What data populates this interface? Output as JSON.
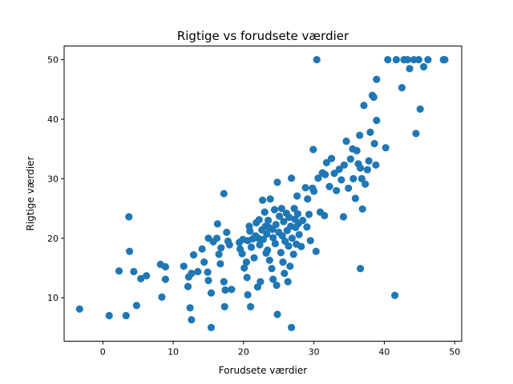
{
  "chart_data": {
    "type": "scatter",
    "title": "Rigtige vs forudsete værdier",
    "xlabel": "Forudsete værdier",
    "ylabel": "Rigtige værdier",
    "xlim": [
      -5.5,
      51.0
    ],
    "ylim": [
      2.7,
      52.3
    ],
    "xticks": [
      0,
      10,
      20,
      30,
      40,
      50
    ],
    "yticks": [
      10,
      20,
      30,
      40,
      50
    ],
    "grid": false,
    "marker_color": "#1f77b4",
    "series": [
      {
        "points": [
          [
            -3.3,
            8.1
          ],
          [
            0.9,
            7.0
          ],
          [
            3.3,
            7.0
          ],
          [
            3.7,
            23.6
          ],
          [
            3.8,
            17.8
          ],
          [
            4.4,
            14.4
          ],
          [
            4.8,
            8.7
          ],
          [
            2.3,
            14.5
          ],
          [
            5.4,
            13.2
          ],
          [
            6.2,
            13.7
          ],
          [
            8.2,
            15.6
          ],
          [
            8.9,
            15.2
          ],
          [
            8.9,
            13.1
          ],
          [
            8.4,
            10.1
          ],
          [
            11.5,
            15.3
          ],
          [
            12.2,
            13.5
          ],
          [
            12.1,
            11.9
          ],
          [
            12.6,
            14.1
          ],
          [
            12.9,
            17.2
          ],
          [
            13.5,
            14.4
          ],
          [
            14.1,
            18.2
          ],
          [
            14.4,
            16.0
          ],
          [
            15.0,
            20.0
          ],
          [
            14.9,
            14.3
          ],
          [
            15.0,
            12.9
          ],
          [
            15.4,
            10.8
          ],
          [
            15.7,
            19.4
          ],
          [
            16.2,
            20.0
          ],
          [
            16.3,
            22.4
          ],
          [
            16.5,
            17.3
          ],
          [
            16.7,
            15.7
          ],
          [
            16.8,
            18.4
          ],
          [
            17.2,
            12.7
          ],
          [
            17.4,
            11.3
          ],
          [
            17.3,
            8.5
          ],
          [
            17.2,
            27.5
          ],
          [
            17.6,
            21.0
          ],
          [
            17.8,
            19.5
          ],
          [
            18.0,
            18.9
          ],
          [
            18.3,
            11.4
          ],
          [
            12.4,
            8.3
          ],
          [
            12.6,
            6.3
          ],
          [
            15.4,
            5.0
          ],
          [
            19.4,
            19.3
          ],
          [
            19.5,
            18.2
          ],
          [
            19.8,
            17.4
          ],
          [
            19.9,
            19.8
          ],
          [
            20.1,
            15.0
          ],
          [
            20.4,
            16.0
          ],
          [
            20.6,
            19.6
          ],
          [
            20.5,
            13.4
          ],
          [
            20.8,
            22.0
          ],
          [
            20.6,
            10.5
          ],
          [
            20.9,
            21.2
          ],
          [
            21.1,
            18.5
          ],
          [
            21.0,
            8.5
          ],
          [
            21.3,
            19.9
          ],
          [
            21.5,
            16.7
          ],
          [
            21.7,
            20.4
          ],
          [
            21.8,
            22.6
          ],
          [
            22.0,
            11.8
          ],
          [
            22.1,
            20.0
          ],
          [
            22.2,
            23.1
          ],
          [
            22.3,
            18.9
          ],
          [
            22.4,
            12.7
          ],
          [
            22.6,
            21.4
          ],
          [
            22.7,
            26.4
          ],
          [
            22.8,
            19.8
          ],
          [
            23.0,
            24.4
          ],
          [
            23.1,
            22.0
          ],
          [
            23.2,
            17.5
          ],
          [
            23.3,
            20.7
          ],
          [
            23.4,
            18.0
          ],
          [
            23.5,
            23.0
          ],
          [
            23.6,
            21.8
          ],
          [
            23.7,
            16.3
          ],
          [
            23.8,
            26.6
          ],
          [
            24.0,
            14.9
          ],
          [
            24.1,
            21.5
          ],
          [
            24.2,
            20.1
          ],
          [
            24.2,
            13.1
          ],
          [
            24.4,
            24.8
          ],
          [
            24.5,
            19.1
          ],
          [
            24.6,
            22.3
          ],
          [
            24.7,
            12.1
          ],
          [
            24.8,
            29.4
          ],
          [
            24.8,
            7.2
          ],
          [
            25.0,
            21.0
          ],
          [
            25.1,
            23.7
          ],
          [
            25.3,
            17.6
          ],
          [
            25.4,
            25.0
          ],
          [
            25.5,
            20.4
          ],
          [
            25.6,
            16.0
          ],
          [
            25.7,
            22.8
          ],
          [
            25.8,
            14.1
          ],
          [
            25.9,
            19.5
          ],
          [
            26.1,
            24.2
          ],
          [
            26.2,
            21.3
          ],
          [
            26.3,
            12.7
          ],
          [
            26.4,
            18.7
          ],
          [
            26.5,
            23.5
          ],
          [
            26.6,
            15.3
          ],
          [
            26.7,
            22.0
          ],
          [
            26.8,
            30.1
          ],
          [
            26.8,
            5.0
          ],
          [
            26.9,
            20.0
          ],
          [
            27.1,
            17.3
          ],
          [
            27.2,
            25.0
          ],
          [
            27.3,
            23.2
          ],
          [
            27.4,
            21.8
          ],
          [
            27.5,
            19.0
          ],
          [
            27.6,
            27.1
          ],
          [
            27.7,
            24.1
          ],
          [
            27.8,
            22.5
          ],
          [
            27.9,
            20.6
          ],
          [
            28.2,
            18.6
          ],
          [
            28.4,
            23.0
          ],
          [
            28.8,
            28.5
          ],
          [
            29.0,
            21.9
          ],
          [
            29.1,
            26.6
          ],
          [
            29.3,
            24.0
          ],
          [
            29.5,
            19.6
          ],
          [
            29.8,
            28.4
          ],
          [
            29.9,
            34.9
          ],
          [
            30.0,
            27.9
          ],
          [
            30.3,
            17.8
          ],
          [
            30.4,
            50.0
          ],
          [
            30.6,
            30.1
          ],
          [
            30.9,
            24.4
          ],
          [
            31.2,
            31.0
          ],
          [
            31.5,
            23.8
          ],
          [
            31.6,
            30.7
          ],
          [
            31.8,
            32.7
          ],
          [
            32.2,
            28.7
          ],
          [
            32.5,
            33.4
          ],
          [
            32.9,
            30.9
          ],
          [
            33.2,
            28.0
          ],
          [
            33.6,
            31.6
          ],
          [
            33.9,
            29.8
          ],
          [
            34.2,
            23.6
          ],
          [
            34.3,
            32.3
          ],
          [
            34.6,
            36.3
          ],
          [
            34.9,
            28.4
          ],
          [
            35.2,
            33.3
          ],
          [
            35.5,
            35.0
          ],
          [
            35.6,
            30.0
          ],
          [
            35.9,
            26.7
          ],
          [
            36.1,
            34.7
          ],
          [
            36.3,
            32.5
          ],
          [
            36.5,
            37.3
          ],
          [
            36.6,
            31.8
          ],
          [
            36.6,
            14.9
          ],
          [
            36.8,
            30.0
          ],
          [
            36.9,
            24.9
          ],
          [
            37.1,
            42.3
          ],
          [
            37.3,
            29.1
          ],
          [
            37.6,
            31.5
          ],
          [
            37.8,
            33.0
          ],
          [
            38.0,
            37.8
          ],
          [
            38.3,
            44.0
          ],
          [
            38.5,
            43.7
          ],
          [
            38.6,
            35.9
          ],
          [
            38.8,
            32.3
          ],
          [
            38.9,
            39.8
          ],
          [
            38.9,
            46.7
          ],
          [
            40.2,
            35.2
          ],
          [
            40.5,
            50.0
          ],
          [
            41.5,
            10.4
          ],
          [
            41.7,
            50.0
          ],
          [
            42.5,
            45.3
          ],
          [
            42.8,
            50.0
          ],
          [
            43.3,
            50.0
          ],
          [
            43.6,
            48.5
          ],
          [
            44.2,
            50.0
          ],
          [
            44.5,
            37.6
          ],
          [
            44.9,
            50.0
          ],
          [
            45.1,
            41.7
          ],
          [
            45.6,
            48.8
          ],
          [
            46.2,
            50.0
          ],
          [
            48.4,
            50.0
          ],
          [
            48.6,
            50.0
          ]
        ]
      }
    ]
  }
}
